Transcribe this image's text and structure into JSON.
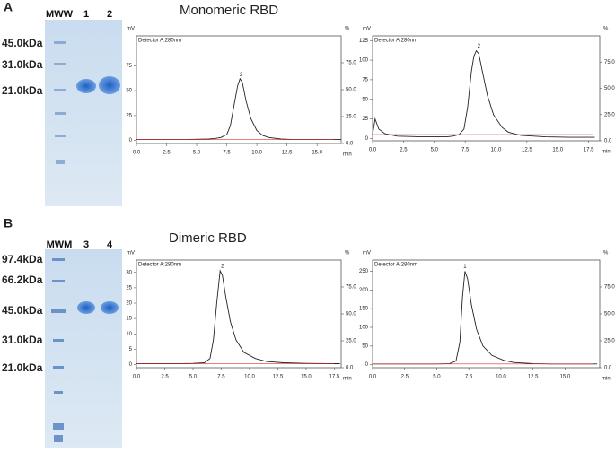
{
  "figure": {
    "panels": [
      {
        "letter": "A",
        "title": "Monomeric RBD",
        "gel": {
          "lanes": [
            "MWW",
            "1",
            "2"
          ],
          "markers": [
            "45.0kDa",
            "31.0kDa",
            "21.0kDa"
          ]
        }
      },
      {
        "letter": "B",
        "title": "Dimeric RBD",
        "gel": {
          "lanes": [
            "MWM",
            "3",
            "4"
          ],
          "markers": [
            "97.4kDa",
            "66.2kDa",
            "45.0kDa",
            "31.0kDa",
            "21.0kDa"
          ]
        }
      }
    ]
  },
  "chart_data": [
    {
      "type": "line",
      "subtitle": "Detector A:280nm",
      "ylabel": "mV",
      "y2label": "%",
      "xlabel": "min",
      "color": "#222222",
      "x": [
        0,
        2,
        4,
        6,
        6.5,
        7,
        7.5,
        7.8,
        8.1,
        8.4,
        8.6,
        8.8,
        9.1,
        9.5,
        10,
        10.5,
        11,
        12,
        13,
        15,
        17
      ],
      "values": [
        1,
        1,
        1,
        1.5,
        2,
        3,
        6,
        15,
        35,
        55,
        62,
        58,
        40,
        22,
        10,
        5,
        3,
        1.5,
        1,
        1,
        1
      ],
      "xlim": [
        0,
        17
      ],
      "ylim": [
        -3,
        105
      ],
      "y2lim": [
        0,
        100
      ],
      "xticks": [
        {
          "value": 0,
          "label": "0.0"
        },
        {
          "value": 2.5,
          "label": "2.5"
        },
        {
          "value": 5,
          "label": "5.0"
        },
        {
          "value": 7.5,
          "label": "7.5"
        },
        {
          "value": 10,
          "label": "10.0"
        },
        {
          "value": 12.5,
          "label": "12.5"
        },
        {
          "value": 15,
          "label": "15.0"
        }
      ],
      "yticks": [
        0,
        25,
        50,
        75
      ],
      "y2ticks": [
        {
          "value": 0,
          "label": "0.0"
        },
        {
          "value": 25,
          "label": "25.0"
        },
        {
          "value": 50,
          "label": "50.0"
        },
        {
          "value": 75,
          "label": "75.0"
        }
      ],
      "annotations": [
        {
          "text": "2",
          "x": 8.7,
          "y": 66
        }
      ]
    },
    {
      "type": "line",
      "subtitle": "Detector A:280nm",
      "ylabel": "mV",
      "y2label": "%",
      "xlabel": "min",
      "color": "#222222",
      "x": [
        0,
        0.2,
        0.5,
        1,
        2,
        4,
        6,
        6.5,
        7,
        7.4,
        7.7,
        8,
        8.2,
        8.4,
        8.6,
        8.9,
        9.3,
        9.8,
        10.5,
        11,
        12,
        14,
        16,
        18
      ],
      "values": [
        5,
        25,
        12,
        6,
        3,
        2,
        2,
        3,
        5,
        12,
        40,
        85,
        105,
        112,
        108,
        85,
        55,
        30,
        14,
        8,
        4,
        2,
        1.5,
        1.5
      ],
      "xlim": [
        0,
        18.4
      ],
      "ylim": [
        -3,
        131
      ],
      "y2lim": [
        0,
        100
      ],
      "xticks": [
        {
          "value": 0,
          "label": "0.0"
        },
        {
          "value": 2.5,
          "label": "2.5"
        },
        {
          "value": 5,
          "label": "5.0"
        },
        {
          "value": 7.5,
          "label": "7.5"
        },
        {
          "value": 10,
          "label": "10.0"
        },
        {
          "value": 12.5,
          "label": "12.5"
        },
        {
          "value": 15,
          "label": "15.0"
        },
        {
          "value": 17.5,
          "label": "17.5"
        }
      ],
      "yticks": [
        0,
        25,
        50,
        75,
        100,
        125
      ],
      "y2ticks": [
        {
          "value": 0,
          "label": "0.0"
        },
        {
          "value": 25,
          "label": "25.0"
        },
        {
          "value": 50,
          "label": "50.0"
        },
        {
          "value": 75,
          "label": "75.0"
        }
      ],
      "annotations": [
        {
          "text": "2",
          "x": 8.6,
          "y": 118
        }
      ]
    },
    {
      "type": "line",
      "subtitle": "Detector A:280nm",
      "ylabel": "mV",
      "y2label": "%",
      "xlabel": "min",
      "color": "#222222",
      "x": [
        0,
        2,
        4,
        5,
        6,
        6.5,
        6.8,
        7.1,
        7.4,
        7.6,
        7.9,
        8.3,
        8.8,
        9.5,
        10.5,
        11.5,
        13,
        15,
        17,
        18
      ],
      "values": [
        0.3,
        0.3,
        0.3,
        0.4,
        0.6,
        2,
        8,
        20,
        30.5,
        29,
        22,
        14,
        8,
        4,
        2,
        1,
        0.6,
        0.4,
        0.3,
        0.3
      ],
      "xlim": [
        0,
        18.1
      ],
      "ylim": [
        -1,
        34
      ],
      "y2lim": [
        0,
        100
      ],
      "xticks": [
        {
          "value": 0,
          "label": "0.0"
        },
        {
          "value": 2.5,
          "label": "2.5"
        },
        {
          "value": 5,
          "label": "5.0"
        },
        {
          "value": 7.5,
          "label": "7.5"
        },
        {
          "value": 10,
          "label": "10.0"
        },
        {
          "value": 12.5,
          "label": "12.5"
        },
        {
          "value": 15,
          "label": "15.0"
        },
        {
          "value": 17.5,
          "label": "17.5"
        }
      ],
      "yticks": [
        0,
        5,
        10,
        15,
        20,
        25,
        30
      ],
      "y2ticks": [
        {
          "value": 0,
          "label": "0.0"
        },
        {
          "value": 25,
          "label": "25.0"
        },
        {
          "value": 50,
          "label": "50.0"
        },
        {
          "value": 75,
          "label": "75.0"
        }
      ],
      "annotations": [
        {
          "text": "2",
          "x": 7.6,
          "y": 32
        }
      ]
    },
    {
      "type": "line",
      "subtitle": "Detector A:280nm",
      "ylabel": "mV",
      "y2label": "%",
      "xlabel": "min",
      "color": "#222222",
      "x": [
        0,
        2,
        4,
        5,
        6,
        6.5,
        6.8,
        7,
        7.2,
        7.4,
        7.7,
        8.1,
        8.6,
        9.3,
        10.2,
        11,
        12.5,
        14,
        16,
        17.5
      ],
      "values": [
        2,
        2,
        2,
        2,
        3,
        10,
        60,
        180,
        250,
        230,
        160,
        95,
        50,
        25,
        12,
        6,
        3,
        2,
        2,
        2
      ],
      "xlim": [
        0,
        17.7
      ],
      "ylim": [
        -8,
        280
      ],
      "y2lim": [
        0,
        100
      ],
      "xticks": [
        {
          "value": 0,
          "label": "0.0"
        },
        {
          "value": 2.5,
          "label": "2.5"
        },
        {
          "value": 5,
          "label": "5.0"
        },
        {
          "value": 7.5,
          "label": "7.5"
        },
        {
          "value": 10,
          "label": "10.0"
        },
        {
          "value": 12.5,
          "label": "12.5"
        },
        {
          "value": 15,
          "label": "15.0"
        }
      ],
      "yticks": [
        0,
        50,
        100,
        150,
        200,
        250
      ],
      "y2ticks": [
        {
          "value": 0,
          "label": "0.0"
        },
        {
          "value": 25,
          "label": "25.0"
        },
        {
          "value": 50,
          "label": "50.0"
        },
        {
          "value": 75,
          "label": "75.0"
        }
      ],
      "annotations": [
        {
          "text": "1",
          "x": 7.2,
          "y": 262
        }
      ]
    }
  ]
}
